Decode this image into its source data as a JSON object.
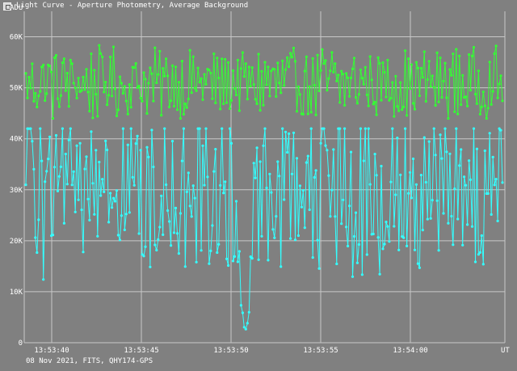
{
  "window": {
    "title": "Light Curve - Aperture Photometry, Average Background"
  },
  "footer": {
    "text": "08 Nov 2021, FITS, QHY174-GPS"
  },
  "colors": {
    "background": "#808080",
    "grid": "#c8c8c8",
    "green_series": "#33ff33",
    "cyan_series": "#33ffff",
    "text": "#ffffff"
  },
  "chart_data": {
    "type": "line",
    "title": "",
    "xlabel": "UT",
    "ylabel": "ADU",
    "x_ticks": [
      "13:53:40",
      "13:53:45",
      "13:53:50",
      "13:53:55",
      "13:54:00"
    ],
    "y_ticks": [
      "0",
      "10K",
      "20K",
      "30K",
      "40K",
      "50K",
      "60K"
    ],
    "ylim": [
      0,
      65000
    ],
    "x_range_seconds": [
      "13:53:38.6",
      "13:54:04.9"
    ],
    "grid": true,
    "series": [
      {
        "color": "#33ff33",
        "mean": 51000,
        "min": 43000,
        "max": 60000,
        "sample_values": [
          48000,
          53500,
          44000,
          54000,
          50500,
          47500,
          55000,
          49000,
          52500,
          46500,
          53000,
          50000,
          58000,
          47000,
          51500,
          54500,
          49500,
          45500,
          53000,
          50500
        ]
      },
      {
        "color": "#33ffff",
        "mean": 30000,
        "min": 1000,
        "max": 42000,
        "dip_time": "13:53:50.5",
        "dip_min": 1000,
        "sample_values": [
          29000,
          31500,
          26000,
          35000,
          28500,
          24000,
          33000,
          30000,
          27500,
          36000,
          29500,
          22500,
          31000,
          34000,
          28000,
          30500,
          25500,
          32500,
          29000,
          37000
        ]
      }
    ]
  }
}
